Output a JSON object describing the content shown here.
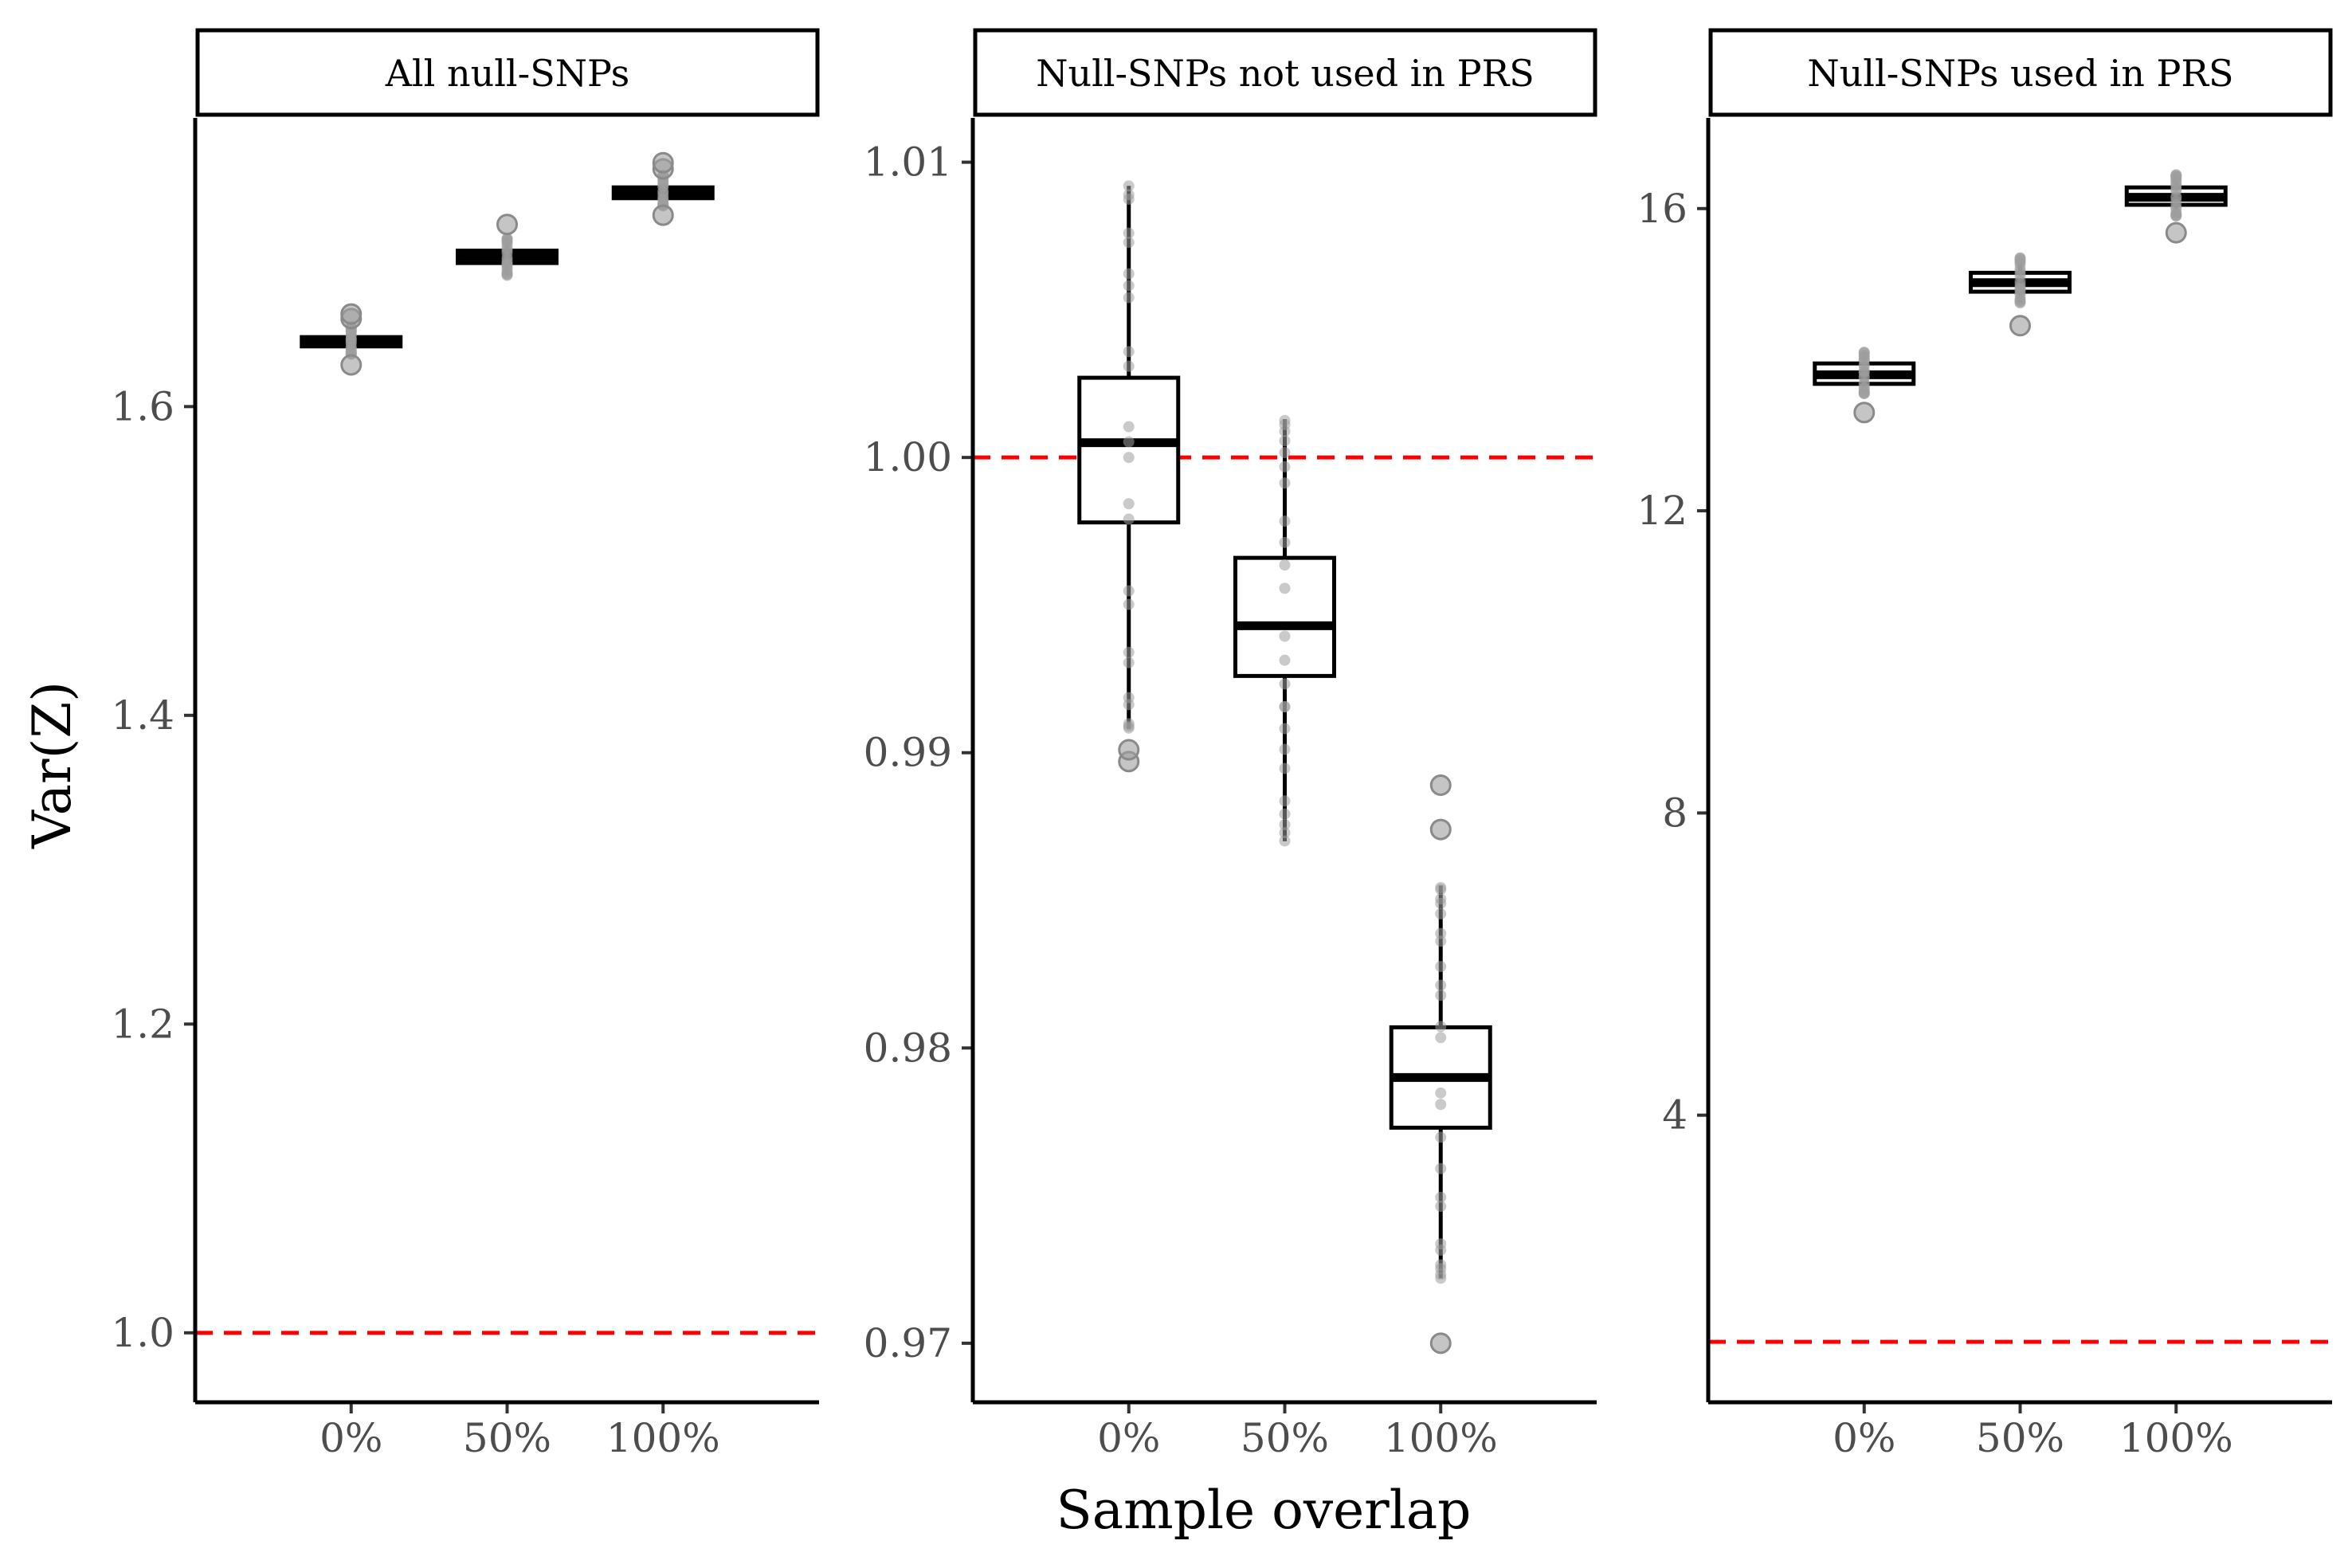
{
  "colors": {
    "box": "#000000",
    "points": "#9e9e9e",
    "reference_line": "#ff0000",
    "tick_text": "#4d4d4d"
  },
  "figure": {
    "xlabel": "Sample overlap",
    "ylabel": "Var(Z)"
  },
  "chart_data": [
    {
      "type": "box",
      "title": "All null-SNPs",
      "categories": [
        "0%",
        "50%",
        "100%"
      ],
      "ylim": [
        0.955,
        1.787
      ],
      "yticks": [
        1.0,
        1.2,
        1.4,
        1.6
      ],
      "ytick_labels": [
        "1.0",
        "1.2",
        "1.4",
        "1.6"
      ],
      "reference_line": 1.0,
      "boxes": [
        {
          "category": "0%",
          "q1": 1.639,
          "median": 1.642,
          "q3": 1.645,
          "whisker_low": 1.634,
          "whisker_high": 1.652,
          "outliers": [
            1.627,
            1.657,
            1.66
          ]
        },
        {
          "category": "50%",
          "q1": 1.693,
          "median": 1.697,
          "q3": 1.701,
          "whisker_low": 1.685,
          "whisker_high": 1.709,
          "outliers": [
            1.718
          ]
        },
        {
          "category": "100%",
          "q1": 1.735,
          "median": 1.738,
          "q3": 1.742,
          "whisker_low": 1.73,
          "whisker_high": 1.75,
          "outliers": [
            1.724,
            1.754,
            1.758
          ]
        }
      ]
    },
    {
      "type": "box",
      "title": "Null-SNPs not used in PRS",
      "categories": [
        "0%",
        "50%",
        "100%"
      ],
      "ylim": [
        0.968,
        1.0115
      ],
      "yticks": [
        0.97,
        0.98,
        0.99,
        1.0,
        1.01
      ],
      "ytick_labels": [
        "0.97",
        "0.98",
        "0.99",
        "1.00",
        "1.01"
      ],
      "reference_line": 1.0,
      "boxes": [
        {
          "category": "0%",
          "q1": 0.9978,
          "median": 1.0005,
          "q3": 1.0027,
          "whisker_low": 0.9908,
          "whisker_high": 1.0092,
          "outliers": [
            0.9897,
            0.9901
          ]
        },
        {
          "category": "50%",
          "q1": 0.9926,
          "median": 0.9943,
          "q3": 0.9966,
          "whisker_low": 0.987,
          "whisker_high": 1.0013,
          "outliers": []
        },
        {
          "category": "100%",
          "q1": 0.9773,
          "median": 0.979,
          "q3": 0.9807,
          "whisker_low": 0.9722,
          "whisker_high": 0.9855,
          "outliers": [
            0.97,
            0.9874,
            0.9889
          ]
        }
      ]
    },
    {
      "type": "box",
      "title": "Null-SNPs used in PRS",
      "categories": [
        "0%",
        "50%",
        "100%"
      ],
      "ylim": [
        0.2,
        17.2
      ],
      "yticks": [
        4,
        8,
        12,
        16
      ],
      "ytick_labels": [
        "4",
        "8",
        "12",
        "16"
      ],
      "reference_line": 1.0,
      "boxes": [
        {
          "category": "0%",
          "q1": 13.68,
          "median": 13.8,
          "q3": 13.95,
          "whisker_low": 13.55,
          "whisker_high": 14.1,
          "outliers": [
            13.3
          ]
        },
        {
          "category": "50%",
          "q1": 14.9,
          "median": 15.02,
          "q3": 15.15,
          "whisker_low": 14.75,
          "whisker_high": 15.35,
          "outliers": [
            14.45
          ]
        },
        {
          "category": "100%",
          "q1": 16.05,
          "median": 16.15,
          "q3": 16.28,
          "whisker_low": 15.9,
          "whisker_high": 16.45,
          "outliers": [
            15.68
          ]
        }
      ]
    }
  ]
}
